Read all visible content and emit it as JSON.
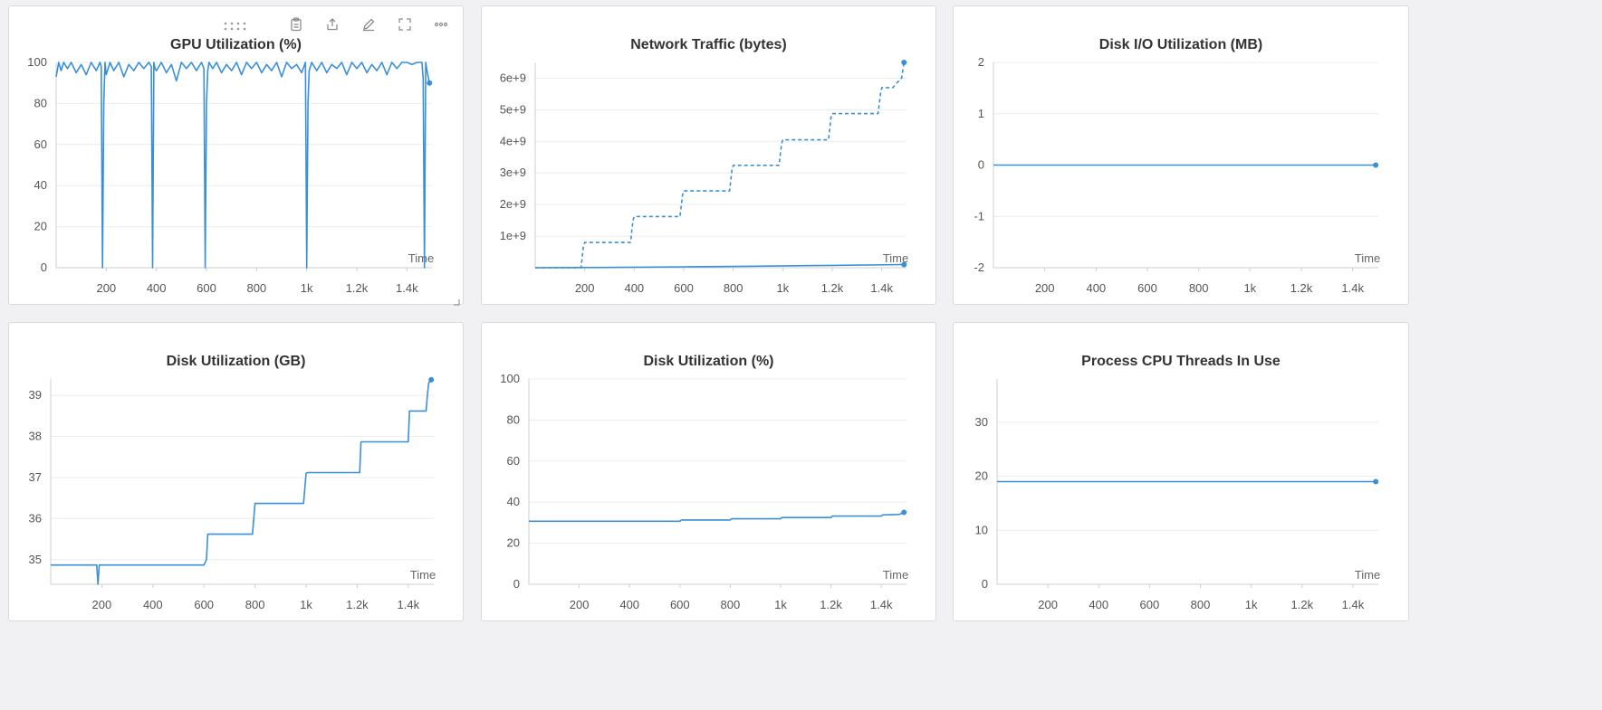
{
  "colors": {
    "series": "#3a8fd9",
    "grid": "#ececec",
    "axis": "#cfcfcf"
  },
  "toolbar": {
    "icons": [
      "drag-handle-icon",
      "clipboard-icon",
      "share-icon",
      "edit-icon",
      "fullscreen-icon",
      "more-icon"
    ]
  },
  "panels": [
    {
      "title": "GPU Utilization (%)",
      "xname": "Time"
    },
    {
      "title": "Network Traffic (bytes)",
      "xname": "Time"
    },
    {
      "title": "Disk I/O Utilization (MB)",
      "xname": "Time"
    },
    {
      "title": "Disk Utilization (GB)",
      "xname": "Time"
    },
    {
      "title": "Disk Utilization (%)",
      "xname": "Time"
    },
    {
      "title": "Process CPU Threads In Use",
      "xname": "Time"
    }
  ],
  "chart_data": [
    {
      "type": "line",
      "title": "GPU Utilization (%)",
      "xlabel": "Time",
      "xlim": [
        0,
        1500
      ],
      "ylim": [
        0,
        100
      ],
      "xticks": [
        200,
        400,
        600,
        800,
        1000,
        1200,
        1400
      ],
      "xtick_labels": [
        "200",
        "400",
        "600",
        "800",
        "1k",
        "1.2k",
        "1.4k"
      ],
      "yticks": [
        0,
        20,
        40,
        60,
        80,
        100
      ],
      "ytick_labels": [
        "0",
        "20",
        "40",
        "60",
        "80",
        "100"
      ],
      "series": [
        {
          "style": "solid",
          "x": [
            0,
            10,
            20,
            30,
            45,
            60,
            80,
            100,
            120,
            140,
            160,
            175,
            180,
            185,
            190,
            195,
            200,
            215,
            230,
            250,
            270,
            290,
            310,
            330,
            350,
            370,
            380,
            385,
            390,
            395,
            400,
            420,
            440,
            460,
            480,
            500,
            520,
            540,
            560,
            580,
            590,
            595,
            600,
            605,
            610,
            625,
            640,
            660,
            680,
            700,
            720,
            740,
            760,
            780,
            800,
            820,
            840,
            860,
            880,
            900,
            920,
            940,
            960,
            980,
            995,
            1000,
            1005,
            1010,
            1020,
            1040,
            1060,
            1080,
            1100,
            1120,
            1140,
            1160,
            1180,
            1200,
            1220,
            1240,
            1260,
            1280,
            1300,
            1320,
            1340,
            1360,
            1380,
            1400,
            1420,
            1440,
            1460,
            1465,
            1470,
            1475,
            1480,
            1490
          ],
          "y": [
            93,
            100,
            96,
            100,
            97,
            100,
            95,
            99,
            94,
            100,
            96,
            100,
            98,
            0,
            80,
            100,
            94,
            100,
            96,
            100,
            93,
            99,
            96,
            100,
            97,
            100,
            98,
            0,
            100,
            97,
            96,
            100,
            95,
            99,
            91,
            100,
            97,
            100,
            96,
            100,
            97,
            0,
            80,
            96,
            100,
            97,
            100,
            95,
            99,
            96,
            100,
            94,
            100,
            97,
            100,
            95,
            99,
            96,
            100,
            93,
            100,
            97,
            99,
            95,
            100,
            0,
            80,
            96,
            100,
            96,
            100,
            95,
            99,
            97,
            100,
            94,
            100,
            97,
            100,
            95,
            99,
            96,
            100,
            94,
            100,
            97,
            100,
            100,
            99,
            100,
            100,
            92,
            0,
            100,
            96,
            90
          ]
        }
      ]
    },
    {
      "type": "line",
      "title": "Network Traffic (bytes)",
      "xlabel": "Time",
      "xlim": [
        0,
        1500
      ],
      "ylim": [
        0,
        6500000000
      ],
      "xticks": [
        200,
        400,
        600,
        800,
        1000,
        1200,
        1400
      ],
      "xtick_labels": [
        "200",
        "400",
        "600",
        "800",
        "1k",
        "1.2k",
        "1.4k"
      ],
      "yticks": [
        1000000000,
        2000000000,
        3000000000,
        4000000000,
        5000000000,
        6000000000
      ],
      "ytick_labels": [
        "1e+9",
        "2e+9",
        "3e+9",
        "4e+9",
        "5e+9",
        "6e+9"
      ],
      "series": [
        {
          "style": "dashed",
          "x": [
            0,
            185,
            195,
            200,
            385,
            395,
            400,
            585,
            595,
            600,
            785,
            795,
            800,
            985,
            995,
            1000,
            1185,
            1195,
            1200,
            1385,
            1395,
            1400,
            1445,
            1455,
            1480,
            1490
          ],
          "y": [
            0,
            0,
            700000000,
            800000000,
            800000000,
            1500000000,
            1620000000,
            1620000000,
            2300000000,
            2430000000,
            2430000000,
            3100000000,
            3240000000,
            3240000000,
            3900000000,
            4050000000,
            4050000000,
            4750000000,
            4880000000,
            4880000000,
            5500000000,
            5700000000,
            5700000000,
            5800000000,
            6000000000,
            6500000000
          ]
        },
        {
          "style": "solid",
          "x": [
            0,
            300,
            600,
            900,
            1200,
            1490
          ],
          "y": [
            0,
            10000000,
            30000000,
            50000000,
            75000000,
            100000000
          ]
        }
      ]
    },
    {
      "type": "line",
      "title": "Disk I/O Utilization (MB)",
      "xlabel": "Time",
      "xlim": [
        0,
        1500
      ],
      "ylim": [
        -2,
        2
      ],
      "xticks": [
        200,
        400,
        600,
        800,
        1000,
        1200,
        1400
      ],
      "xtick_labels": [
        "200",
        "400",
        "600",
        "800",
        "1k",
        "1.2k",
        "1.4k"
      ],
      "yticks": [
        -2,
        -1,
        0,
        1,
        2
      ],
      "ytick_labels": [
        "-2",
        "-1",
        "0",
        "1",
        "2"
      ],
      "series": [
        {
          "style": "solid",
          "x": [
            0,
            1490
          ],
          "y": [
            0,
            0
          ]
        }
      ]
    },
    {
      "type": "line",
      "title": "Disk Utilization (GB)",
      "xlabel": "Time",
      "xlim": [
        0,
        1500
      ],
      "ylim": [
        34.4,
        39.4
      ],
      "xticks": [
        200,
        400,
        600,
        800,
        1000,
        1200,
        1400
      ],
      "xtick_labels": [
        "200",
        "400",
        "600",
        "800",
        "1k",
        "1.2k",
        "1.4k"
      ],
      "yticks": [
        35,
        36,
        37,
        38,
        39
      ],
      "ytick_labels": [
        "35",
        "36",
        "37",
        "38",
        "39"
      ],
      "series": [
        {
          "style": "solid",
          "x": [
            0,
            170,
            180,
            185,
            190,
            600,
            610,
            615,
            790,
            800,
            805,
            990,
            1000,
            1005,
            1210,
            1215,
            1400,
            1405,
            1470,
            1475,
            1480,
            1490
          ],
          "y": [
            34.87,
            34.87,
            34.87,
            34.4,
            34.87,
            34.87,
            35.0,
            35.62,
            35.62,
            36.37,
            36.37,
            36.37,
            37.1,
            37.12,
            37.12,
            37.87,
            37.87,
            38.62,
            38.62,
            39.0,
            39.3,
            39.38
          ]
        }
      ]
    },
    {
      "type": "line",
      "title": "Disk Utilization (%)",
      "xlabel": "Time",
      "xlim": [
        0,
        1500
      ],
      "ylim": [
        0,
        100
      ],
      "xticks": [
        200,
        400,
        600,
        800,
        1000,
        1200,
        1400
      ],
      "xtick_labels": [
        "200",
        "400",
        "600",
        "800",
        "1k",
        "1.2k",
        "1.4k"
      ],
      "yticks": [
        0,
        20,
        40,
        60,
        80,
        100
      ],
      "ytick_labels": [
        "0",
        "20",
        "40",
        "60",
        "80",
        "100"
      ],
      "series": [
        {
          "style": "solid",
          "x": [
            0,
            600,
            605,
            800,
            805,
            1000,
            1005,
            1200,
            1205,
            1400,
            1405,
            1470,
            1490
          ],
          "y": [
            30.7,
            30.7,
            31.3,
            31.3,
            31.9,
            31.9,
            32.5,
            32.5,
            33.2,
            33.2,
            33.8,
            34.0,
            35.0
          ]
        }
      ]
    },
    {
      "type": "line",
      "title": "Process CPU Threads In Use",
      "xlabel": "Time",
      "xlim": [
        0,
        1500
      ],
      "ylim": [
        0,
        38
      ],
      "xticks": [
        200,
        400,
        600,
        800,
        1000,
        1200,
        1400
      ],
      "xtick_labels": [
        "200",
        "400",
        "600",
        "800",
        "1k",
        "1.2k",
        "1.4k"
      ],
      "yticks": [
        0,
        10,
        20,
        30
      ],
      "ytick_labels": [
        "0",
        "10",
        "20",
        "30"
      ],
      "series": [
        {
          "style": "solid",
          "x": [
            0,
            1490
          ],
          "y": [
            19,
            19
          ]
        }
      ]
    }
  ]
}
